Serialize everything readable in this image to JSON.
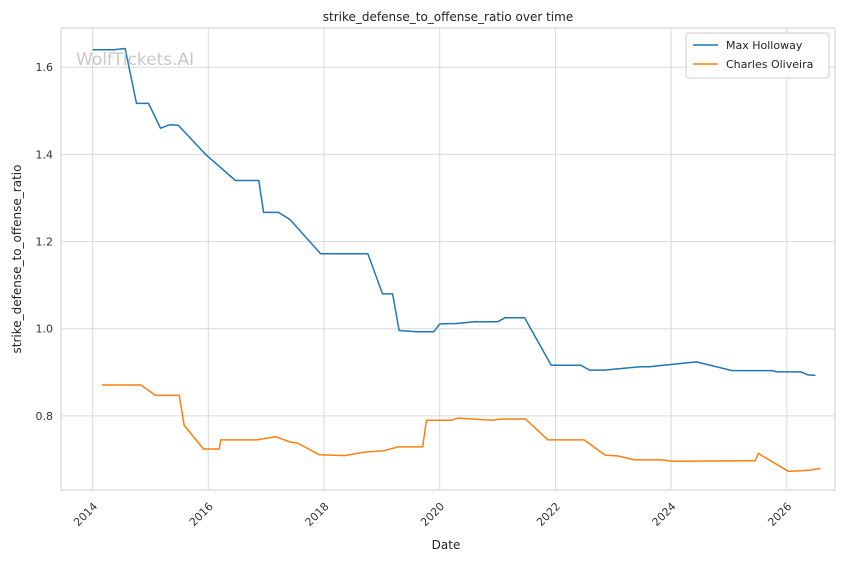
{
  "watermark": "WolfTickets.AI",
  "chart_data": {
    "type": "line",
    "title": "strike_defense_to_offense_ratio over time",
    "xlabel": "Date",
    "ylabel": "strike_defense_to_offense_ratio",
    "xlim": [
      "2013-06-15",
      "2026-11-01"
    ],
    "ylim": [
      0.63,
      1.69
    ],
    "xticks": [
      "2014",
      "2016",
      "2018",
      "2020",
      "2022",
      "2024",
      "2026"
    ],
    "yticks": [
      "0.8",
      "1.0",
      "1.2",
      "1.4",
      "1.6"
    ],
    "grid": true,
    "legend_position": "upper right",
    "series": [
      {
        "name": "Max Holloway",
        "color": "#1f77b4",
        "points": [
          [
            "2014-01-01",
            1.64
          ],
          [
            "2014-05-15",
            1.64
          ],
          [
            "2014-07-25",
            1.643
          ],
          [
            "2014-10-05",
            1.517
          ],
          [
            "2014-12-20",
            1.517
          ],
          [
            "2015-03-05",
            1.46
          ],
          [
            "2015-05-01",
            1.468
          ],
          [
            "2015-06-25",
            1.467
          ],
          [
            "2015-12-15",
            1.4
          ],
          [
            "2016-06-20",
            1.34
          ],
          [
            "2016-10-15",
            1.34
          ],
          [
            "2016-11-15",
            1.34
          ],
          [
            "2016-12-15",
            1.267
          ],
          [
            "2017-03-20",
            1.267
          ],
          [
            "2017-06-01",
            1.25
          ],
          [
            "2017-12-10",
            1.172
          ],
          [
            "2018-10-05",
            1.172
          ],
          [
            "2019-01-05",
            1.08
          ],
          [
            "2019-03-10",
            1.08
          ],
          [
            "2019-04-20",
            0.996
          ],
          [
            "2019-08-10",
            0.993
          ],
          [
            "2019-11-25",
            0.993
          ],
          [
            "2020-01-01",
            1.011
          ],
          [
            "2020-04-15",
            1.012
          ],
          [
            "2020-08-10",
            1.016
          ],
          [
            "2021-01-01",
            1.016
          ],
          [
            "2021-02-15",
            1.025
          ],
          [
            "2021-06-20",
            1.025
          ],
          [
            "2021-12-05",
            0.916
          ],
          [
            "2022-06-10",
            0.916
          ],
          [
            "2022-08-05",
            0.905
          ],
          [
            "2022-11-05",
            0.905
          ],
          [
            "2023-06-20",
            0.913
          ],
          [
            "2023-08-15",
            0.913
          ],
          [
            "2024-04-15",
            0.922
          ],
          [
            "2024-06-10",
            0.924
          ],
          [
            "2025-01-20",
            0.904
          ],
          [
            "2025-10-01",
            0.904
          ],
          [
            "2025-11-01",
            0.901
          ],
          [
            "2026-04-01",
            0.901
          ],
          [
            "2026-05-15",
            0.894
          ],
          [
            "2026-07-01",
            0.893
          ]
        ]
      },
      {
        "name": "Charles Oliveira",
        "color": "#ff7f0e",
        "points": [
          [
            "2014-03-01",
            0.871
          ],
          [
            "2014-11-01",
            0.871
          ],
          [
            "2015-02-01",
            0.847
          ],
          [
            "2015-07-01",
            0.847
          ],
          [
            "2015-08-01",
            0.779
          ],
          [
            "2015-12-01",
            0.724
          ],
          [
            "2016-03-10",
            0.724
          ],
          [
            "2016-03-20",
            0.745
          ],
          [
            "2016-11-01",
            0.745
          ],
          [
            "2017-03-01",
            0.752
          ],
          [
            "2017-06-01",
            0.74
          ],
          [
            "2017-07-15",
            0.738
          ],
          [
            "2017-12-01",
            0.711
          ],
          [
            "2018-05-10",
            0.709
          ],
          [
            "2018-09-15",
            0.717
          ],
          [
            "2019-01-10",
            0.72
          ],
          [
            "2019-04-15",
            0.729
          ],
          [
            "2019-09-15",
            0.729
          ],
          [
            "2019-10-10",
            0.79
          ],
          [
            "2020-03-15",
            0.79
          ],
          [
            "2020-04-25",
            0.795
          ],
          [
            "2020-12-01",
            0.79
          ],
          [
            "2021-01-01",
            0.792
          ],
          [
            "2021-02-01",
            0.793
          ],
          [
            "2021-06-25",
            0.793
          ],
          [
            "2021-11-15",
            0.745
          ],
          [
            "2022-02-20",
            0.745
          ],
          [
            "2022-07-01",
            0.745
          ],
          [
            "2022-11-10",
            0.71
          ],
          [
            "2023-02-01",
            0.708
          ],
          [
            "2023-05-15",
            0.699
          ],
          [
            "2023-11-01",
            0.699
          ],
          [
            "2024-01-10",
            0.696
          ],
          [
            "2025-05-01",
            0.697
          ],
          [
            "2025-06-15",
            0.697
          ],
          [
            "2025-07-05",
            0.714
          ],
          [
            "2026-01-10",
            0.673
          ],
          [
            "2026-04-01",
            0.674
          ],
          [
            "2026-06-01",
            0.676
          ],
          [
            "2026-07-01",
            0.678
          ],
          [
            "2026-08-01",
            0.679
          ]
        ]
      }
    ]
  }
}
